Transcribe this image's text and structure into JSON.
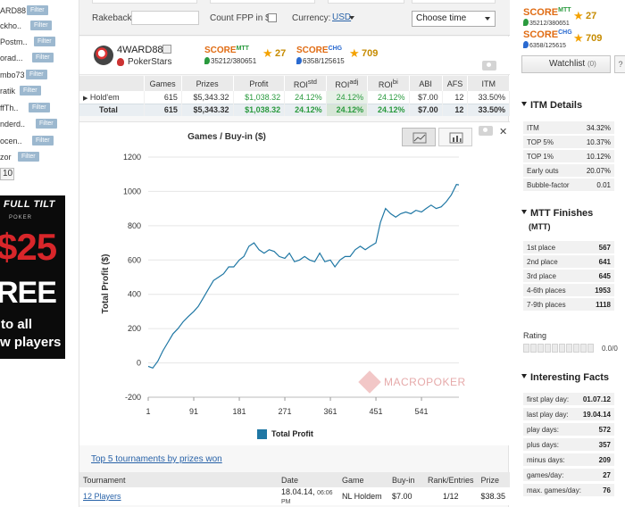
{
  "left": {
    "players": [
      "ARD88",
      "ckho..",
      "Postm..",
      "orad...",
      "mbo73",
      "ratik",
      "ffTh..",
      "nderd..",
      "ocen..",
      "zor"
    ],
    "filter_label": "Filter",
    "page": "10"
  },
  "banner": {
    "logo": "FULL TILT",
    "logo_sub": "POKER",
    "big1": "$25",
    "big2": "REE",
    "line1": "to all",
    "line2": "w players"
  },
  "filterbar": {
    "rakeback_label": "Rakeback:",
    "count_fpp_label": "Count FPP in $",
    "currency_label": "Currency:",
    "currency_value": "USD",
    "choose_time": "Choose time"
  },
  "player": {
    "name": "4WARD88",
    "room": "PokerStars",
    "score_label": "SCORE",
    "mtt_sup": "MTT",
    "mtt_rank": "35212/380651",
    "mtt_score": "27",
    "chg_sup": "CHG",
    "chg_rank": "6358/125615",
    "chg_score": "709"
  },
  "stats": {
    "headers": [
      "Games",
      "Prizes",
      "Profit",
      "ROI",
      "ROI",
      "ROI",
      "ABI",
      "AFS",
      "ITM"
    ],
    "roi_sups": [
      "std",
      "adj",
      "bi"
    ],
    "rows": [
      {
        "label": "Hold'em",
        "games": "615",
        "prizes": "$5,343.32",
        "profit": "$1,038.32",
        "roi_std": "24.12%",
        "roi_adj": "24.12%",
        "roi_bi": "24.12%",
        "abi": "$7.00",
        "afs": "12",
        "itm": "33.50%"
      },
      {
        "label": "Total",
        "games": "615",
        "prizes": "$5,343.32",
        "profit": "$1,038.32",
        "roi_std": "24.12%",
        "roi_adj": "24.12%",
        "roi_bi": "24.12%",
        "abi": "$7.00",
        "afs": "12",
        "itm": "33.50%"
      }
    ]
  },
  "chart_data": {
    "type": "line",
    "title": "Games / Buy-in ($)",
    "xlabel": "",
    "ylabel": "Total Profit ($)",
    "x_ticks": [
      1,
      91,
      181,
      271,
      361,
      451,
      541
    ],
    "y_ticks": [
      -200,
      0,
      200,
      400,
      600,
      800,
      1000,
      1200
    ],
    "xlim": [
      1,
      615
    ],
    "ylim": [
      -200,
      1200
    ],
    "legend": "bottom-center",
    "grid": true,
    "series": [
      {
        "name": "Total Profit",
        "color": "#1f77a4",
        "x": [
          1,
          10,
          20,
          30,
          40,
          50,
          60,
          70,
          80,
          91,
          100,
          110,
          120,
          130,
          140,
          150,
          160,
          170,
          181,
          190,
          200,
          210,
          220,
          230,
          240,
          250,
          260,
          271,
          280,
          290,
          300,
          310,
          320,
          330,
          340,
          350,
          361,
          370,
          380,
          390,
          400,
          410,
          420,
          430,
          440,
          451,
          460,
          470,
          480,
          490,
          500,
          510,
          520,
          530,
          541,
          550,
          560,
          570,
          580,
          590,
          600,
          610,
          615
        ],
        "y": [
          -20,
          -30,
          10,
          70,
          120,
          170,
          200,
          240,
          270,
          300,
          330,
          380,
          430,
          480,
          500,
          520,
          560,
          560,
          600,
          620,
          680,
          700,
          660,
          640,
          660,
          650,
          620,
          610,
          640,
          590,
          600,
          620,
          600,
          590,
          640,
          590,
          600,
          560,
          600,
          620,
          620,
          660,
          680,
          660,
          680,
          700,
          820,
          900,
          870,
          850,
          870,
          880,
          870,
          890,
          880,
          900,
          920,
          900,
          910,
          940,
          980,
          1040,
          1038
        ]
      }
    ],
    "watermark": "MACROPOKER"
  },
  "top5": {
    "title": "Top 5 tournaments by prizes won",
    "headers": [
      "Tournament",
      "Date",
      "Game",
      "Buy-in",
      "Rank/Entries",
      "Prize"
    ],
    "rows": [
      {
        "tournament": "12 Players",
        "date": "18.04.14,",
        "time": "06:06 PM",
        "game": "NL Holdem",
        "buyin": "$7.00",
        "rank": "1/12",
        "prize": "$38.35"
      }
    ]
  },
  "right": {
    "score_label": "SCORE",
    "mtt_sup": "MTT",
    "mtt_rank": "35212/380651",
    "mtt_score": "27",
    "chg_sup": "CHG",
    "chg_rank": "6358/125615",
    "chg_score": "709",
    "watchlist": "Watchlist",
    "watch_count": "(0)",
    "help": "?",
    "itm_title": "ITM Details",
    "itm_rows": [
      {
        "label": "ITM",
        "value": "34.32%"
      },
      {
        "label": "TOP 5%",
        "value": "10.37%"
      },
      {
        "label": "TOP 1%",
        "value": "10.12%"
      },
      {
        "label": "Early outs",
        "value": "20.07%"
      },
      {
        "label": "Bubble-factor",
        "value": "0.01"
      }
    ],
    "finishes_title": "MTT Finishes",
    "finishes_sub": "(MTT)",
    "finishes_rows": [
      {
        "label": "1st place",
        "value": "567"
      },
      {
        "label": "2nd place",
        "value": "641"
      },
      {
        "label": "3rd place",
        "value": "645"
      },
      {
        "label": "4-6th places",
        "value": "1953"
      },
      {
        "label": "7-9th places",
        "value": "1118"
      }
    ],
    "rating_label": "Rating",
    "rating_value": "0.0/0",
    "facts_title": "Interesting Facts",
    "facts_rows": [
      {
        "label": "first play day:",
        "value": "01.07.12"
      },
      {
        "label": "last play day:",
        "value": "19.04.14"
      },
      {
        "label": "play days:",
        "value": "572"
      },
      {
        "label": "plus days:",
        "value": "357"
      },
      {
        "label": "minus days:",
        "value": "209"
      },
      {
        "label": "games/day:",
        "value": "27"
      },
      {
        "label": "max. games/day:",
        "value": "76"
      }
    ]
  }
}
